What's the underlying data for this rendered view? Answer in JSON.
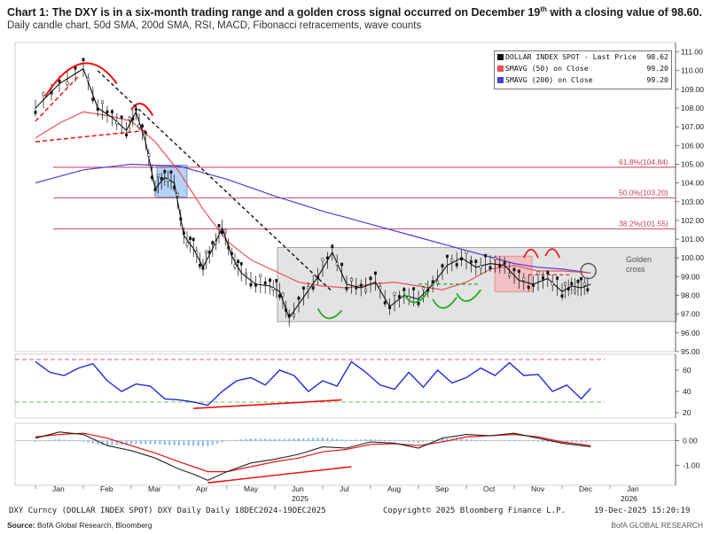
{
  "header": {
    "title_prefix": "Chart 1:  The DXY is in a six-month trading range and a golden cross signal occurred on December 19",
    "title_sup": "th",
    "title_suffix": " with a closing value of 98.60.",
    "subtitle": "Daily candle chart, 50d SMA, 200d SMA, RSI, MACD, Fibonacci retracements, wave counts"
  },
  "legend": [
    {
      "label": "DOLLAR INDEX SPOT - Last Price",
      "value": "98.62",
      "color": "#111111"
    },
    {
      "label": "SMAVG (50)  on Close",
      "value": "99.20",
      "color": "#e8505a"
    },
    {
      "label": "SMAVG (200)  on Close",
      "value": "99.20",
      "color": "#4a3fd6"
    }
  ],
  "footer": {
    "left": "DXY Curncy (DOLLAR INDEX SPOT) DXY Daily Daily 18DEC2024-19DEC2025",
    "center": "Copyright© 2025 Bloomberg Finance L.P.",
    "right": "19-Dec-2025 15:20:19",
    "source_label": "Source:",
    "source_text": " BofA Global Research, Bloomberg",
    "brand": "BofA GLOBAL RESEARCH"
  },
  "chart_data": [
    {
      "type": "line",
      "panel": "price",
      "ylim": [
        95,
        111.5
      ],
      "yticks": [
        "111.00",
        "110.00",
        "109.00",
        "108.00",
        "107.00",
        "106.00",
        "105.00",
        "104.00",
        "103.00",
        "102.00",
        "101.00",
        "100.00",
        "99.00",
        "98.00",
        "97.00",
        "96.00",
        "95.00"
      ],
      "ytick_values": [
        111,
        110,
        109,
        108,
        107,
        106,
        105,
        104,
        103,
        102,
        101,
        100,
        99,
        98,
        97,
        96,
        95
      ],
      "x_months": [
        "Jan",
        "Feb",
        "Mar",
        "Apr",
        "May",
        "Jun",
        "Jul",
        "Aug",
        "Sep",
        "Oct",
        "Nov",
        "Dec",
        "Jan"
      ],
      "year_labels": [
        "2025",
        "2026"
      ],
      "series": [
        {
          "name": "DOLLAR INDEX SPOT - Last Price",
          "x": [
            0,
            0.5,
            1,
            1.3,
            1.6,
            1.9,
            2.1,
            2.3,
            2.5,
            2.7,
            2.9,
            3.1,
            3.3,
            3.5,
            3.7,
            3.9,
            4.1,
            4.3,
            4.6,
            4.9,
            5.1,
            5.3,
            5.6,
            5.9,
            6.2,
            6.5,
            6.8,
            7.1,
            7.4,
            7.7,
            8,
            8.3,
            8.6,
            8.9,
            9.2,
            9.5,
            9.8,
            10.1,
            10.4,
            10.7,
            11,
            11.2,
            11.4,
            11.6
          ],
          "values": [
            108.0,
            109.3,
            110.1,
            108.0,
            107.5,
            106.8,
            107.8,
            106.2,
            103.7,
            104.3,
            104.0,
            101.2,
            100.5,
            99.5,
            100.5,
            101.6,
            100.1,
            99.2,
            98.6,
            98.5,
            98.2,
            96.8,
            97.9,
            99.0,
            100.3,
            98.6,
            98.4,
            98.7,
            97.4,
            98.0,
            97.8,
            98.6,
            99.6,
            100.0,
            99.5,
            99.7,
            99.6,
            98.8,
            98.6,
            98.9,
            98.2,
            98.5,
            98.4,
            98.6
          ]
        },
        {
          "name": "SMAVG (50)  on Close",
          "x": [
            0,
            0.5,
            1,
            1.5,
            2,
            2.5,
            3,
            3.5,
            4,
            4.5,
            5,
            5.5,
            6,
            6.5,
            7,
            7.5,
            8,
            8.5,
            9,
            9.5,
            10,
            10.5,
            11,
            11.6
          ],
          "values": [
            106.4,
            107.2,
            107.8,
            107.6,
            107.3,
            106.2,
            104.6,
            102.6,
            100.9,
            99.9,
            99.3,
            98.7,
            98.5,
            98.4,
            98.6,
            98.7,
            98.5,
            98.3,
            98.7,
            99.4,
            99.6,
            99.3,
            99.3,
            99.2
          ]
        },
        {
          "name": "SMAVG (200)  on Close",
          "x": [
            0,
            1,
            2,
            3,
            4,
            5,
            6,
            7,
            8,
            9,
            10,
            10.5,
            11,
            11.6
          ],
          "values": [
            104.0,
            104.7,
            105.0,
            104.9,
            104.2,
            103.3,
            102.5,
            101.8,
            101.1,
            100.4,
            99.7,
            99.5,
            99.4,
            99.2
          ]
        }
      ],
      "fibonacci": [
        {
          "label": "61.8%(104.84)",
          "value": 104.84
        },
        {
          "label": "50.0%(103.20)",
          "value": 103.2
        },
        {
          "label": "38.2%(101.55)",
          "value": 101.55
        }
      ],
      "trading_range": [
        96.6,
        100.55
      ],
      "annotation": "Golden\ncross",
      "annotation_lines": [
        "Golden",
        "cross"
      ]
    },
    {
      "type": "line",
      "panel": "RSI",
      "ylim": [
        15,
        75
      ],
      "yticks": [
        "60",
        "40",
        "20"
      ],
      "ytick_values": [
        60,
        40,
        20
      ],
      "levels": [
        70,
        30
      ],
      "series": [
        {
          "name": "RSI",
          "x": [
            0,
            0.3,
            0.6,
            0.9,
            1.2,
            1.5,
            1.8,
            2.1,
            2.4,
            2.7,
            3.0,
            3.3,
            3.6,
            3.9,
            4.2,
            4.5,
            4.8,
            5.1,
            5.4,
            5.7,
            6.0,
            6.3,
            6.6,
            6.9,
            7.2,
            7.5,
            7.8,
            8.1,
            8.4,
            8.7,
            9.0,
            9.3,
            9.6,
            9.9,
            10.2,
            10.5,
            10.8,
            11.1,
            11.4,
            11.6
          ],
          "values": [
            68,
            58,
            55,
            62,
            66,
            50,
            40,
            47,
            45,
            33,
            32,
            30,
            27,
            40,
            50,
            53,
            46,
            60,
            55,
            40,
            50,
            45,
            68,
            58,
            46,
            42,
            58,
            44,
            60,
            48,
            53,
            62,
            55,
            67,
            55,
            56,
            40,
            46,
            33,
            43
          ]
        }
      ]
    },
    {
      "type": "line",
      "panel": "MACD",
      "ylim": [
        -1.8,
        0.7
      ],
      "yticks": [
        "0.00",
        "-1.00"
      ],
      "ytick_values": [
        0,
        -1
      ],
      "series": [
        {
          "name": "MACD",
          "x": [
            0,
            0.5,
            1,
            1.5,
            2,
            2.5,
            3,
            3.3,
            3.6,
            4,
            4.5,
            5,
            5.5,
            6,
            6.5,
            7,
            7.5,
            8,
            8.5,
            9,
            9.5,
            10,
            10.5,
            11,
            11.6
          ],
          "values": [
            0.1,
            0.35,
            0.25,
            -0.2,
            -0.4,
            -0.7,
            -1.15,
            -1.35,
            -1.6,
            -1.25,
            -0.9,
            -0.75,
            -0.55,
            -0.25,
            -0.3,
            -0.05,
            -0.1,
            -0.3,
            0.1,
            0.25,
            0.2,
            0.3,
            0.1,
            -0.1,
            -0.25
          ]
        },
        {
          "name": "Signal",
          "x": [
            0,
            0.5,
            1,
            1.5,
            2,
            2.5,
            3,
            3.3,
            3.6,
            4,
            4.5,
            5,
            5.5,
            6,
            6.5,
            7,
            7.5,
            8,
            8.5,
            9,
            9.5,
            10,
            10.5,
            11,
            11.6
          ],
          "values": [
            0.15,
            0.25,
            0.3,
            0.1,
            -0.2,
            -0.5,
            -0.85,
            -1.05,
            -1.25,
            -1.25,
            -1.05,
            -0.85,
            -0.7,
            -0.45,
            -0.35,
            -0.15,
            -0.12,
            -0.2,
            -0.05,
            0.15,
            0.2,
            0.25,
            0.15,
            -0.05,
            -0.2
          ]
        }
      ]
    }
  ]
}
